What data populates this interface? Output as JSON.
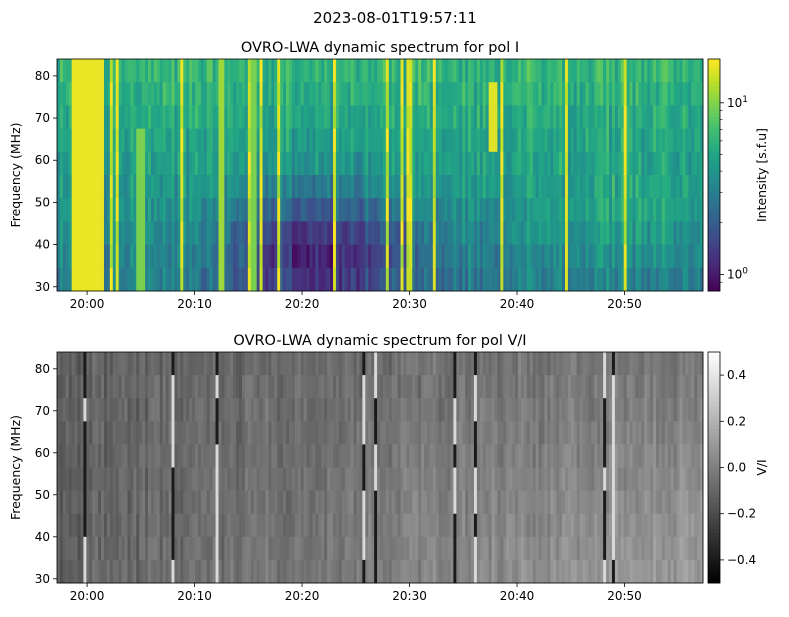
{
  "suptitle": "2023-08-01T19:57:11",
  "chart_data": [
    {
      "type": "heatmap",
      "title": "OVRO-LWA dynamic spectrum for pol I",
      "xlabel": "",
      "ylabel": "Frequency (MHz)",
      "x_ticks": [
        "20:00",
        "20:10",
        "20:20",
        "20:30",
        "20:40",
        "20:50"
      ],
      "x_tick_minutes": [
        0,
        10,
        20,
        30,
        40,
        50
      ],
      "xlim_minutes": [
        -2.8,
        57.3
      ],
      "ylim": [
        29,
        84
      ],
      "y_ticks": [
        30,
        40,
        50,
        60,
        70,
        80
      ],
      "colormap": "viridis",
      "colorbar": {
        "label": "Intensity [s.f.u]",
        "scale": "log",
        "range": [
          0.8,
          18
        ],
        "ticks": [
          {
            "label": "10",
            "exp": "0",
            "value": 1
          },
          {
            "label": "10",
            "exp": "1",
            "value": 10
          }
        ]
      },
      "features": [
        {
          "minute": 0,
          "width": 3,
          "fmin": 29,
          "fmax": 84,
          "level": 0.97
        },
        {
          "minute": 5,
          "width": 0.6,
          "fmin": 29,
          "fmax": 70,
          "level": 0.8
        },
        {
          "minute": 12.5,
          "width": 0.6,
          "fmin": 29,
          "fmax": 84,
          "level": 0.85
        },
        {
          "minute": 15.5,
          "width": 0.5,
          "fmin": 29,
          "fmax": 84,
          "level": 0.8
        },
        {
          "minute": 37.8,
          "width": 0.8,
          "fmin": 60,
          "fmax": 80,
          "level": 0.95
        }
      ]
    },
    {
      "type": "heatmap",
      "title": "OVRO-LWA dynamic spectrum for pol V/I",
      "xlabel": "",
      "ylabel": "Frequency (MHz)",
      "x_ticks": [
        "20:00",
        "20:10",
        "20:20",
        "20:30",
        "20:40",
        "20:50"
      ],
      "x_tick_minutes": [
        0,
        10,
        20,
        30,
        40,
        50
      ],
      "xlim_minutes": [
        -2.8,
        57.3
      ],
      "ylim": [
        29,
        84
      ],
      "y_ticks": [
        30,
        40,
        50,
        60,
        70,
        80
      ],
      "colormap": "gray",
      "colorbar": {
        "label": "V/I",
        "scale": "linear",
        "range": [
          -0.5,
          0.5
        ],
        "ticks": [
          {
            "label": "0.4",
            "value": 0.4
          },
          {
            "label": "0.2",
            "value": 0.2
          },
          {
            "label": "0.0",
            "value": 0.0
          },
          {
            "label": "−0.2",
            "value": -0.2
          },
          {
            "label": "−0.4",
            "value": -0.4
          }
        ]
      }
    }
  ]
}
